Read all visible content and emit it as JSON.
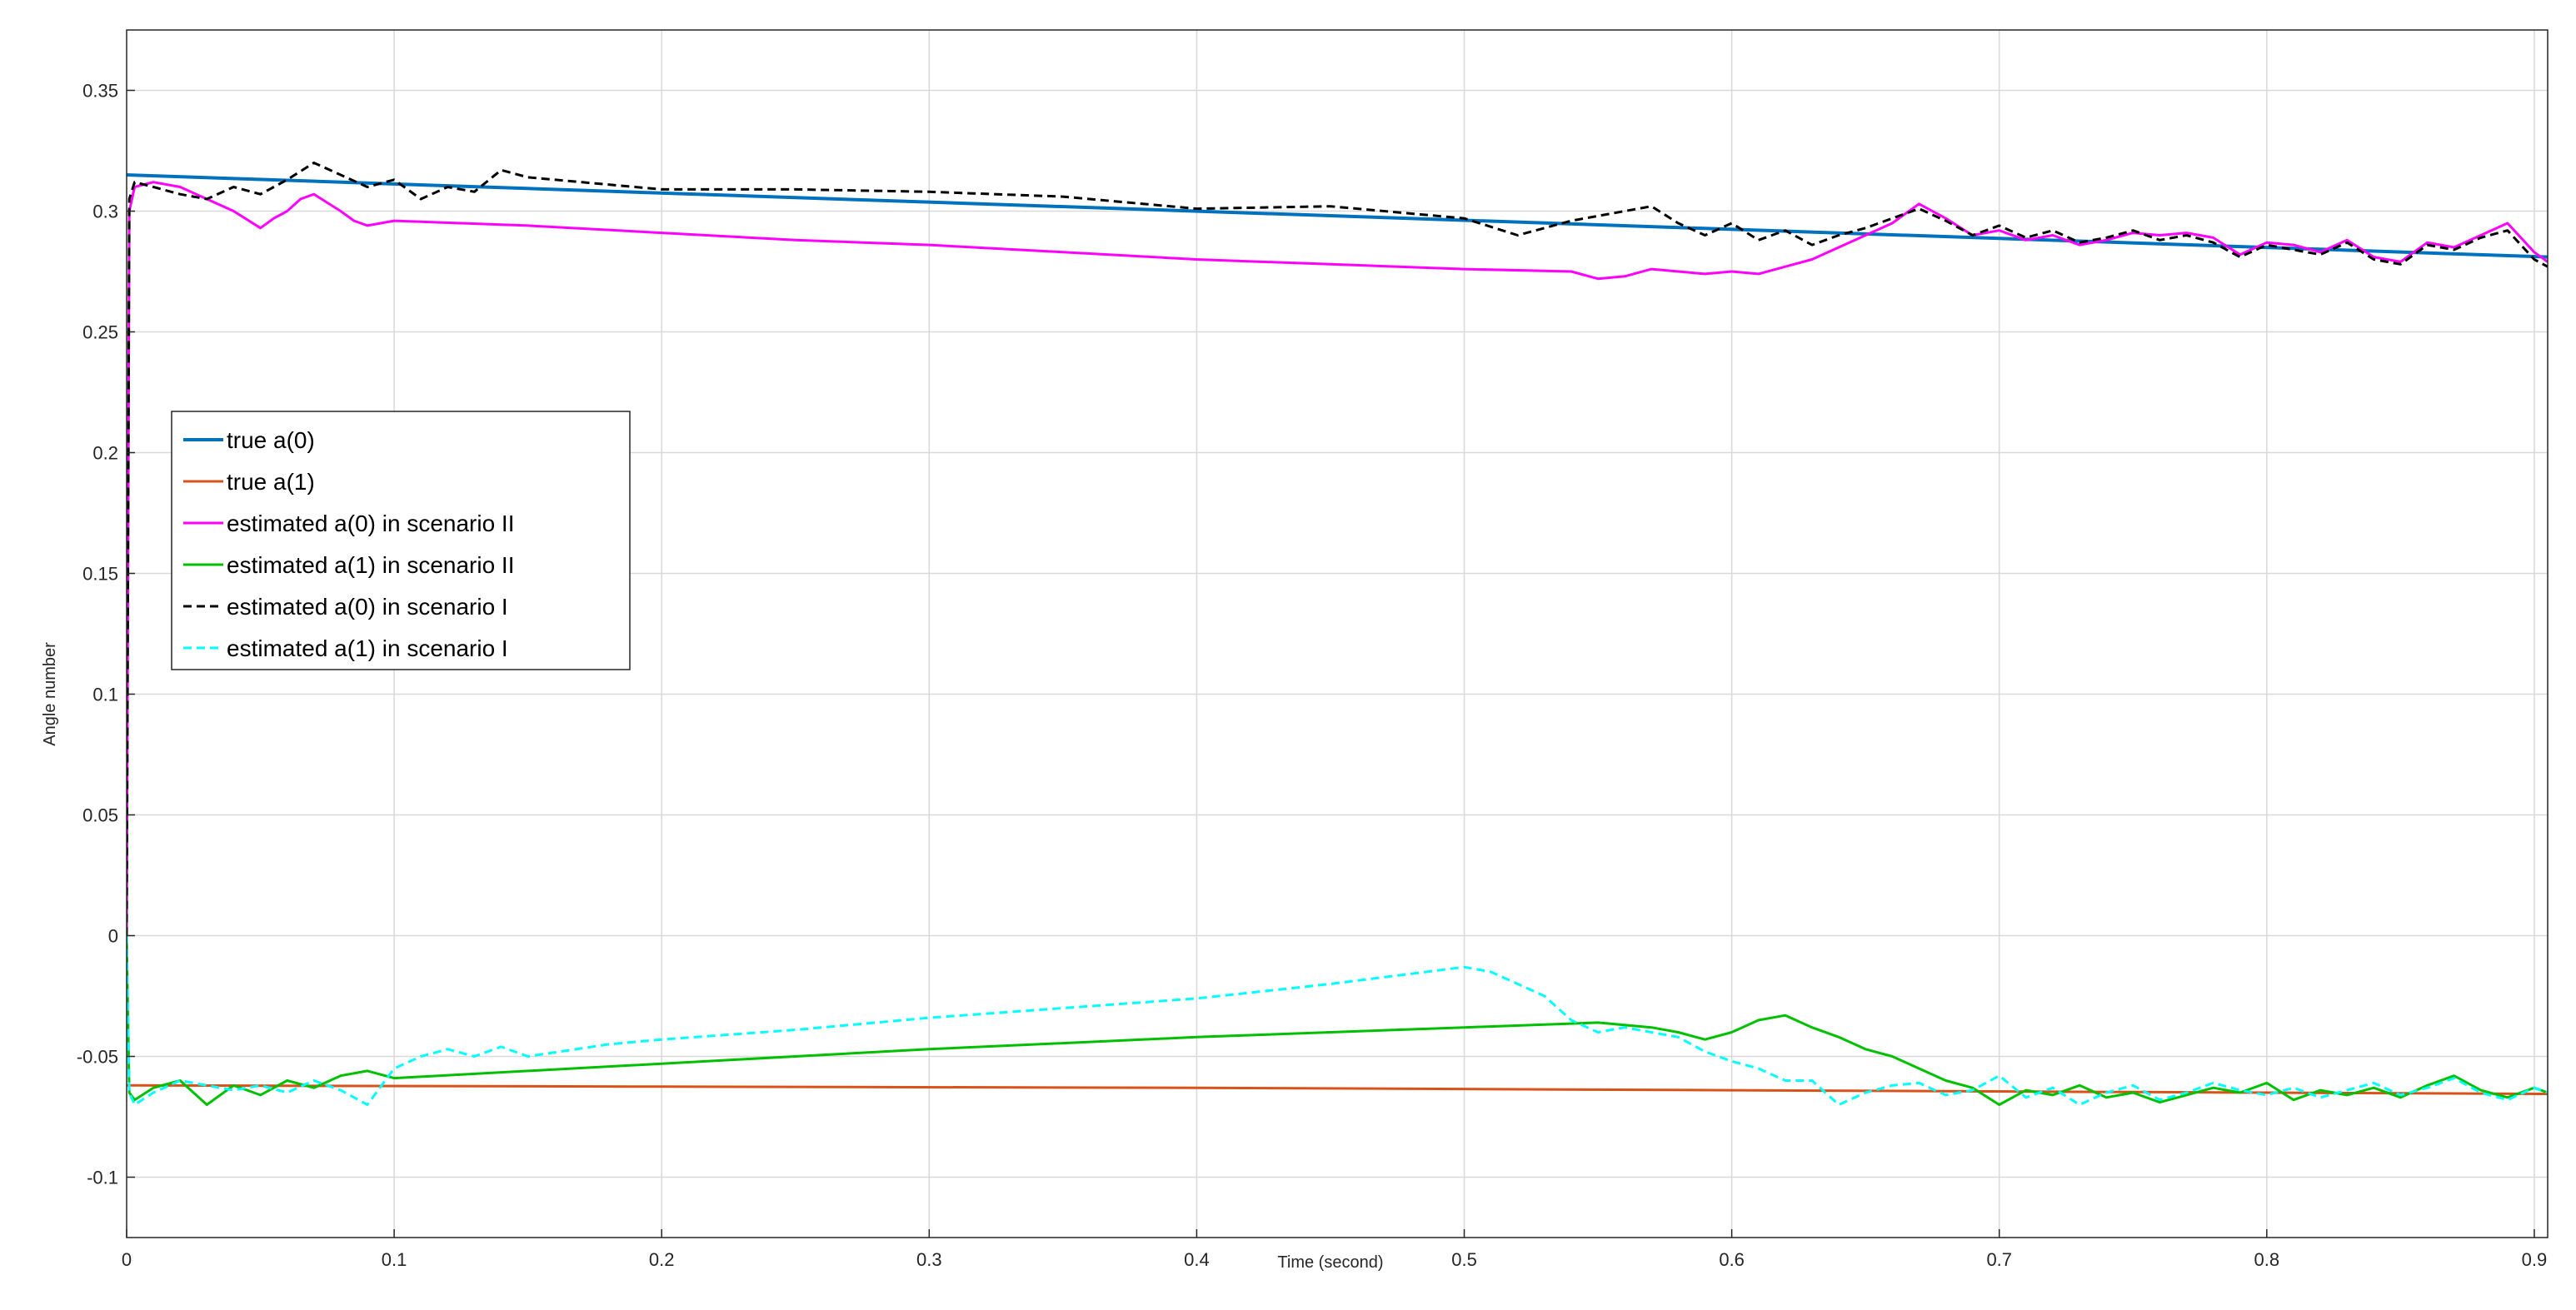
{
  "chart_data": {
    "type": "line",
    "title": "",
    "xlabel": "Time (second)",
    "ylabel": "Angle number",
    "xlim": [
      0,
      0.905
    ],
    "ylim": [
      -0.125,
      0.375
    ],
    "x_ticks": [
      0,
      0.1,
      0.2,
      0.3,
      0.4,
      0.5,
      0.6,
      0.7,
      0.8,
      0.9
    ],
    "x_tick_labels": [
      "0",
      "0.1",
      "0.2",
      "0.3",
      "0.4",
      "0.5",
      "0.6",
      "0.7",
      "0.8",
      "0.9"
    ],
    "y_ticks": [
      -0.1,
      -0.05,
      0,
      0.05,
      0.1,
      0.15,
      0.2,
      0.25,
      0.3,
      0.35
    ],
    "y_tick_labels": [
      "-0.1",
      "-0.05",
      "0",
      "0.05",
      "0.1",
      "0.15",
      "0.2",
      "0.25",
      "0.3",
      "0.35"
    ],
    "grid": true,
    "legend_position": "left",
    "series": [
      {
        "name": "true a(0)",
        "color": "#0072BD",
        "style": "solid",
        "x": [
          0,
          0.905
        ],
        "y": [
          0.315,
          0.281
        ]
      },
      {
        "name": "true a(1)",
        "color": "#D95319",
        "style": "solid",
        "x": [
          0,
          0.2,
          0.4,
          0.6,
          0.8,
          0.905
        ],
        "y": [
          -0.062,
          -0.0625,
          -0.063,
          -0.064,
          -0.065,
          -0.0655
        ]
      },
      {
        "name": "estimated a(0) in scenario II",
        "color": "#FF00FF",
        "style": "solid",
        "x": [
          0,
          0.001,
          0.003,
          0.01,
          0.02,
          0.03,
          0.04,
          0.05,
          0.055,
          0.06,
          0.065,
          0.07,
          0.08,
          0.085,
          0.09,
          0.1,
          0.15,
          0.2,
          0.25,
          0.3,
          0.35,
          0.4,
          0.45,
          0.5,
          0.54,
          0.55,
          0.56,
          0.57,
          0.58,
          0.59,
          0.6,
          0.61,
          0.62,
          0.63,
          0.64,
          0.65,
          0.66,
          0.67,
          0.68,
          0.69,
          0.7,
          0.71,
          0.72,
          0.73,
          0.74,
          0.75,
          0.76,
          0.77,
          0.78,
          0.79,
          0.8,
          0.81,
          0.82,
          0.83,
          0.84,
          0.85,
          0.86,
          0.87,
          0.88,
          0.89,
          0.9,
          0.905
        ],
        "y": [
          0,
          0.3,
          0.31,
          0.312,
          0.31,
          0.305,
          0.3,
          0.293,
          0.297,
          0.3,
          0.305,
          0.307,
          0.3,
          0.296,
          0.294,
          0.296,
          0.294,
          0.291,
          0.288,
          0.286,
          0.283,
          0.28,
          0.278,
          0.276,
          0.275,
          0.272,
          0.273,
          0.276,
          0.275,
          0.274,
          0.275,
          0.274,
          0.277,
          0.28,
          0.285,
          0.29,
          0.295,
          0.303,
          0.297,
          0.29,
          0.292,
          0.288,
          0.29,
          0.286,
          0.288,
          0.291,
          0.29,
          0.291,
          0.289,
          0.282,
          0.287,
          0.286,
          0.283,
          0.288,
          0.281,
          0.279,
          0.287,
          0.285,
          0.29,
          0.295,
          0.283,
          0.279
        ]
      },
      {
        "name": "estimated a(1) in scenario II",
        "color": "#00C000",
        "style": "solid",
        "x": [
          0,
          0.001,
          0.003,
          0.01,
          0.02,
          0.03,
          0.04,
          0.05,
          0.06,
          0.07,
          0.08,
          0.09,
          0.1,
          0.2,
          0.3,
          0.4,
          0.5,
          0.55,
          0.57,
          0.58,
          0.59,
          0.6,
          0.61,
          0.62,
          0.63,
          0.64,
          0.65,
          0.66,
          0.67,
          0.68,
          0.69,
          0.7,
          0.71,
          0.72,
          0.73,
          0.74,
          0.75,
          0.76,
          0.77,
          0.78,
          0.79,
          0.8,
          0.81,
          0.82,
          0.83,
          0.84,
          0.85,
          0.86,
          0.87,
          0.88,
          0.89,
          0.9,
          0.905
        ],
        "y": [
          0,
          -0.065,
          -0.068,
          -0.063,
          -0.06,
          -0.07,
          -0.062,
          -0.066,
          -0.06,
          -0.063,
          -0.058,
          -0.056,
          -0.059,
          -0.053,
          -0.047,
          -0.042,
          -0.038,
          -0.036,
          -0.038,
          -0.04,
          -0.043,
          -0.04,
          -0.035,
          -0.033,
          -0.038,
          -0.042,
          -0.047,
          -0.05,
          -0.055,
          -0.06,
          -0.063,
          -0.07,
          -0.064,
          -0.066,
          -0.062,
          -0.067,
          -0.065,
          -0.069,
          -0.066,
          -0.063,
          -0.065,
          -0.061,
          -0.068,
          -0.064,
          -0.066,
          -0.063,
          -0.067,
          -0.062,
          -0.058,
          -0.064,
          -0.067,
          -0.063,
          -0.065
        ]
      },
      {
        "name": "estimated a(0) in scenario I",
        "color": "#000000",
        "style": "dashed",
        "x": [
          0,
          0.001,
          0.003,
          0.01,
          0.02,
          0.03,
          0.04,
          0.05,
          0.06,
          0.07,
          0.08,
          0.09,
          0.1,
          0.11,
          0.12,
          0.13,
          0.14,
          0.15,
          0.2,
          0.25,
          0.3,
          0.35,
          0.4,
          0.45,
          0.5,
          0.52,
          0.54,
          0.55,
          0.56,
          0.57,
          0.58,
          0.59,
          0.6,
          0.61,
          0.62,
          0.63,
          0.64,
          0.65,
          0.66,
          0.67,
          0.68,
          0.69,
          0.7,
          0.71,
          0.72,
          0.73,
          0.74,
          0.75,
          0.76,
          0.77,
          0.78,
          0.79,
          0.8,
          0.81,
          0.82,
          0.83,
          0.84,
          0.85,
          0.86,
          0.87,
          0.88,
          0.89,
          0.9,
          0.905
        ],
        "y": [
          0,
          0.305,
          0.312,
          0.31,
          0.307,
          0.305,
          0.31,
          0.307,
          0.313,
          0.32,
          0.315,
          0.31,
          0.313,
          0.305,
          0.31,
          0.308,
          0.317,
          0.314,
          0.309,
          0.309,
          0.308,
          0.306,
          0.301,
          0.302,
          0.297,
          0.29,
          0.296,
          0.298,
          0.3,
          0.302,
          0.295,
          0.29,
          0.295,
          0.288,
          0.292,
          0.286,
          0.29,
          0.293,
          0.297,
          0.301,
          0.296,
          0.29,
          0.294,
          0.289,
          0.292,
          0.287,
          0.289,
          0.292,
          0.288,
          0.29,
          0.287,
          0.281,
          0.286,
          0.284,
          0.282,
          0.287,
          0.28,
          0.278,
          0.286,
          0.284,
          0.289,
          0.292,
          0.28,
          0.277
        ]
      },
      {
        "name": "estimated a(1) in scenario I",
        "color": "#00FFFF",
        "style": "dashed",
        "x": [
          0,
          0.001,
          0.003,
          0.01,
          0.02,
          0.03,
          0.04,
          0.05,
          0.06,
          0.07,
          0.08,
          0.09,
          0.1,
          0.11,
          0.12,
          0.13,
          0.14,
          0.15,
          0.18,
          0.2,
          0.25,
          0.3,
          0.35,
          0.4,
          0.45,
          0.5,
          0.51,
          0.52,
          0.53,
          0.54,
          0.55,
          0.56,
          0.57,
          0.58,
          0.59,
          0.6,
          0.61,
          0.62,
          0.63,
          0.64,
          0.65,
          0.66,
          0.67,
          0.68,
          0.69,
          0.7,
          0.71,
          0.72,
          0.73,
          0.74,
          0.75,
          0.76,
          0.77,
          0.78,
          0.79,
          0.8,
          0.81,
          0.82,
          0.83,
          0.84,
          0.85,
          0.86,
          0.87,
          0.88,
          0.89,
          0.9,
          0.905
        ],
        "y": [
          0,
          -0.065,
          -0.07,
          -0.065,
          -0.06,
          -0.062,
          -0.064,
          -0.062,
          -0.065,
          -0.06,
          -0.064,
          -0.07,
          -0.055,
          -0.05,
          -0.047,
          -0.05,
          -0.046,
          -0.05,
          -0.045,
          -0.043,
          -0.039,
          -0.034,
          -0.03,
          -0.026,
          -0.02,
          -0.013,
          -0.015,
          -0.02,
          -0.025,
          -0.035,
          -0.04,
          -0.038,
          -0.04,
          -0.042,
          -0.048,
          -0.052,
          -0.055,
          -0.06,
          -0.06,
          -0.07,
          -0.065,
          -0.062,
          -0.061,
          -0.066,
          -0.064,
          -0.058,
          -0.067,
          -0.063,
          -0.07,
          -0.065,
          -0.062,
          -0.068,
          -0.065,
          -0.061,
          -0.064,
          -0.066,
          -0.063,
          -0.067,
          -0.064,
          -0.061,
          -0.066,
          -0.063,
          -0.059,
          -0.065,
          -0.068,
          -0.063,
          -0.065
        ]
      }
    ]
  }
}
